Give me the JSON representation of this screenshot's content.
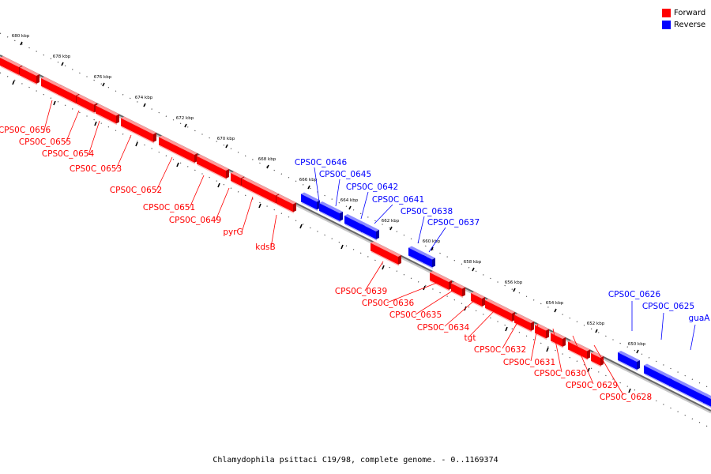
{
  "legend": {
    "forward_label": "Forward",
    "reverse_label": "Reverse",
    "forward_color": "#ff0000",
    "reverse_color": "#0000ff"
  },
  "caption": "Chlamydophila psittaci C19/98, complete genome. - 0..1169374",
  "scale": {
    "unit": "kbp",
    "ticks": [
      680,
      678,
      676,
      674,
      672,
      670,
      668,
      666,
      664,
      662,
      660,
      658,
      656,
      654,
      652,
      650
    ]
  },
  "labels": [
    {
      "text": "CPS0C_0656",
      "strand": "forward"
    },
    {
      "text": "CPS0C_0655",
      "strand": "forward"
    },
    {
      "text": "CPS0C_0654",
      "strand": "forward"
    },
    {
      "text": "CPS0C_0653",
      "strand": "forward"
    },
    {
      "text": "CPS0C_0652",
      "strand": "forward"
    },
    {
      "text": "CPS0C_0651",
      "strand": "forward"
    },
    {
      "text": "CPS0C_0649",
      "strand": "forward"
    },
    {
      "text": "pyrG",
      "strand": "forward"
    },
    {
      "text": "kdsB",
      "strand": "forward"
    },
    {
      "text": "CPS0C_0646",
      "strand": "reverse"
    },
    {
      "text": "CPS0C_0645",
      "strand": "reverse"
    },
    {
      "text": "CPS0C_0642",
      "strand": "reverse"
    },
    {
      "text": "CPS0C_0641",
      "strand": "reverse"
    },
    {
      "text": "CPS0C_0638",
      "strand": "reverse"
    },
    {
      "text": "CPS0C_0637",
      "strand": "reverse"
    },
    {
      "text": "CPS0C_0639",
      "strand": "forward"
    },
    {
      "text": "CPS0C_0636",
      "strand": "forward"
    },
    {
      "text": "CPS0C_0635",
      "strand": "forward"
    },
    {
      "text": "CPS0C_0634",
      "strand": "forward"
    },
    {
      "text": "tgt",
      "strand": "forward"
    },
    {
      "text": "CPS0C_0632",
      "strand": "forward"
    },
    {
      "text": "CPS0C_0631",
      "strand": "forward"
    },
    {
      "text": "CPS0C_0630",
      "strand": "forward"
    },
    {
      "text": "CPS0C_0629",
      "strand": "forward"
    },
    {
      "text": "CPS0C_0628",
      "strand": "forward"
    },
    {
      "text": "CPS0C_0626",
      "strand": "reverse"
    },
    {
      "text": "CPS0C_0625",
      "strand": "reverse"
    },
    {
      "text": "guaA",
      "strand": "reverse"
    }
  ]
}
